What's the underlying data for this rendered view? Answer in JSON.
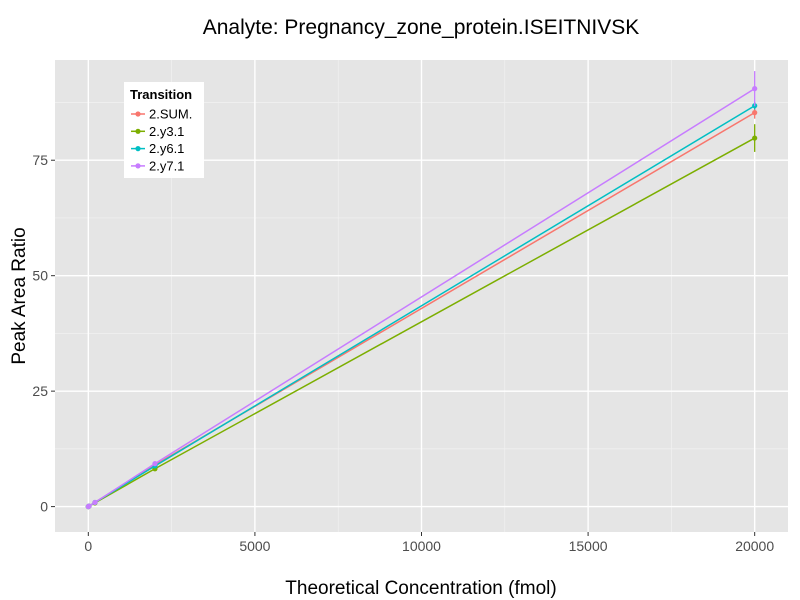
{
  "chart_data": {
    "type": "line",
    "title": "Analyte: Pregnancy_zone_protein.ISEITNIVSK",
    "xlabel": "Theoretical Concentration (fmol)",
    "ylabel": "Peak Area Ratio",
    "xlim": [
      -1000,
      21000
    ],
    "ylim": [
      -5.5,
      96.7
    ],
    "x_ticks": [
      0,
      5000,
      10000,
      15000,
      20000
    ],
    "x_tick_labels": [
      "0",
      "5000",
      "10000",
      "15000",
      "20000"
    ],
    "y_ticks": [
      0,
      25,
      50,
      75
    ],
    "y_tick_labels": [
      "0",
      "25",
      "50",
      "75"
    ],
    "grid": true,
    "legend": {
      "title": "Transition",
      "position": "top-left"
    },
    "series": [
      {
        "name": "2.SUM.",
        "color": "#F8766D",
        "points": [
          {
            "x": 0,
            "y": 0.0,
            "err": 0
          },
          {
            "x": 20,
            "y": 0.1,
            "err": 0
          },
          {
            "x": 200,
            "y": 0.9,
            "err": 0
          },
          {
            "x": 2000,
            "y": 9.0,
            "err": 0
          },
          {
            "x": 20000,
            "y": 85.3,
            "err": 1.3
          }
        ]
      },
      {
        "name": "2.y3.1",
        "color": "#7CAE00",
        "points": [
          {
            "x": 0,
            "y": 0.0,
            "err": 0
          },
          {
            "x": 20,
            "y": 0.1,
            "err": 0
          },
          {
            "x": 200,
            "y": 0.8,
            "err": 0
          },
          {
            "x": 2000,
            "y": 8.2,
            "err": 0
          },
          {
            "x": 20000,
            "y": 79.8,
            "err": 3.0
          }
        ]
      },
      {
        "name": "2.y6.1",
        "color": "#00BFC4",
        "points": [
          {
            "x": 0,
            "y": 0.0,
            "err": 0
          },
          {
            "x": 20,
            "y": 0.1,
            "err": 0
          },
          {
            "x": 200,
            "y": 0.9,
            "err": 0
          },
          {
            "x": 2000,
            "y": 8.8,
            "err": 0
          },
          {
            "x": 20000,
            "y": 86.8,
            "err": 0.8
          }
        ]
      },
      {
        "name": "2.y7.1",
        "color": "#C77CFF",
        "points": [
          {
            "x": 0,
            "y": 0.0,
            "err": 0
          },
          {
            "x": 20,
            "y": 0.1,
            "err": 0
          },
          {
            "x": 200,
            "y": 0.9,
            "err": 0
          },
          {
            "x": 2000,
            "y": 9.3,
            "err": 0
          },
          {
            "x": 20000,
            "y": 90.5,
            "err": 3.8
          }
        ]
      }
    ]
  }
}
